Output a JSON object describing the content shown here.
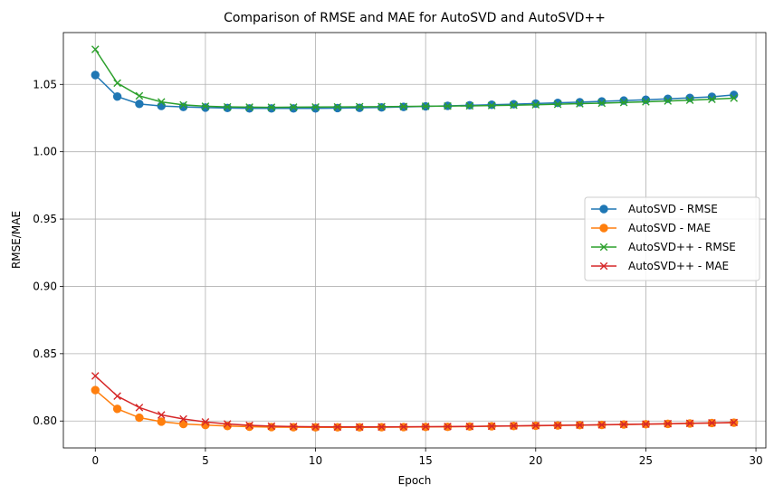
{
  "chart_data": {
    "type": "line",
    "title": "Comparison of RMSE and MAE for AutoSVD and AutoSVD++",
    "xlabel": "Epoch",
    "ylabel": "RMSE/MAE",
    "xlim": [
      -1.45,
      30.45
    ],
    "ylim": [
      0.78,
      1.0885
    ],
    "xticks": [
      0,
      5,
      10,
      15,
      20,
      25,
      30
    ],
    "yticks": [
      0.8,
      0.85,
      0.9,
      0.95,
      1.0,
      1.05
    ],
    "xtick_labels": [
      "0",
      "5",
      "10",
      "15",
      "20",
      "25",
      "30"
    ],
    "ytick_labels": [
      "0.80",
      "0.85",
      "0.90",
      "0.95",
      "1.00",
      "1.05"
    ],
    "grid": true,
    "legend_position": "center-right",
    "x": [
      0,
      1,
      2,
      3,
      4,
      5,
      6,
      7,
      8,
      9,
      10,
      11,
      12,
      13,
      14,
      15,
      16,
      17,
      18,
      19,
      20,
      21,
      22,
      23,
      24,
      25,
      26,
      27,
      28,
      29
    ],
    "series": [
      {
        "name": "AutoSVD - RMSE",
        "color": "#1f77b4",
        "marker": "circle",
        "values": [
          1.057,
          1.041,
          1.0355,
          1.034,
          1.0333,
          1.0328,
          1.0325,
          1.0322,
          1.0322,
          1.0322,
          1.0322,
          1.0324,
          1.0326,
          1.0329,
          1.0333,
          1.0337,
          1.0341,
          1.0345,
          1.0349,
          1.0353,
          1.0358,
          1.0363,
          1.0368,
          1.0374,
          1.038,
          1.0386,
          1.0393,
          1.04,
          1.0408,
          1.0422
        ]
      },
      {
        "name": "AutoSVD - MAE",
        "color": "#ff7f0e",
        "marker": "circle",
        "values": [
          0.823,
          0.809,
          0.8025,
          0.7995,
          0.7978,
          0.797,
          0.7963,
          0.7958,
          0.7955,
          0.7954,
          0.7953,
          0.7953,
          0.7953,
          0.7954,
          0.7955,
          0.7956,
          0.7957,
          0.7959,
          0.7961,
          0.7963,
          0.7965,
          0.7967,
          0.7969,
          0.7971,
          0.7974,
          0.7976,
          0.7979,
          0.7982,
          0.7985,
          0.7988
        ]
      },
      {
        "name": "AutoSVD++ - RMSE",
        "color": "#2ca02c",
        "marker": "x",
        "values": [
          1.076,
          1.051,
          1.0415,
          1.037,
          1.0348,
          1.0338,
          1.0333,
          1.0331,
          1.033,
          1.0331,
          1.0332,
          1.0333,
          1.0334,
          1.0335,
          1.0336,
          1.0338,
          1.0339,
          1.0341,
          1.0343,
          1.0346,
          1.0349,
          1.0353,
          1.0357,
          1.0361,
          1.0366,
          1.0371,
          1.0377,
          1.0383,
          1.039,
          1.0398
        ]
      },
      {
        "name": "AutoSVD++ - MAE",
        "color": "#d62728",
        "marker": "x",
        "values": [
          0.8335,
          0.8185,
          0.81,
          0.8045,
          0.8015,
          0.7993,
          0.7978,
          0.7968,
          0.7962,
          0.7959,
          0.7957,
          0.7956,
          0.7956,
          0.7956,
          0.7957,
          0.7958,
          0.7959,
          0.796,
          0.7962,
          0.7964,
          0.7966,
          0.7968,
          0.797,
          0.7972,
          0.7975,
          0.7977,
          0.798,
          0.7983,
          0.7986,
          0.7989
        ]
      }
    ]
  }
}
